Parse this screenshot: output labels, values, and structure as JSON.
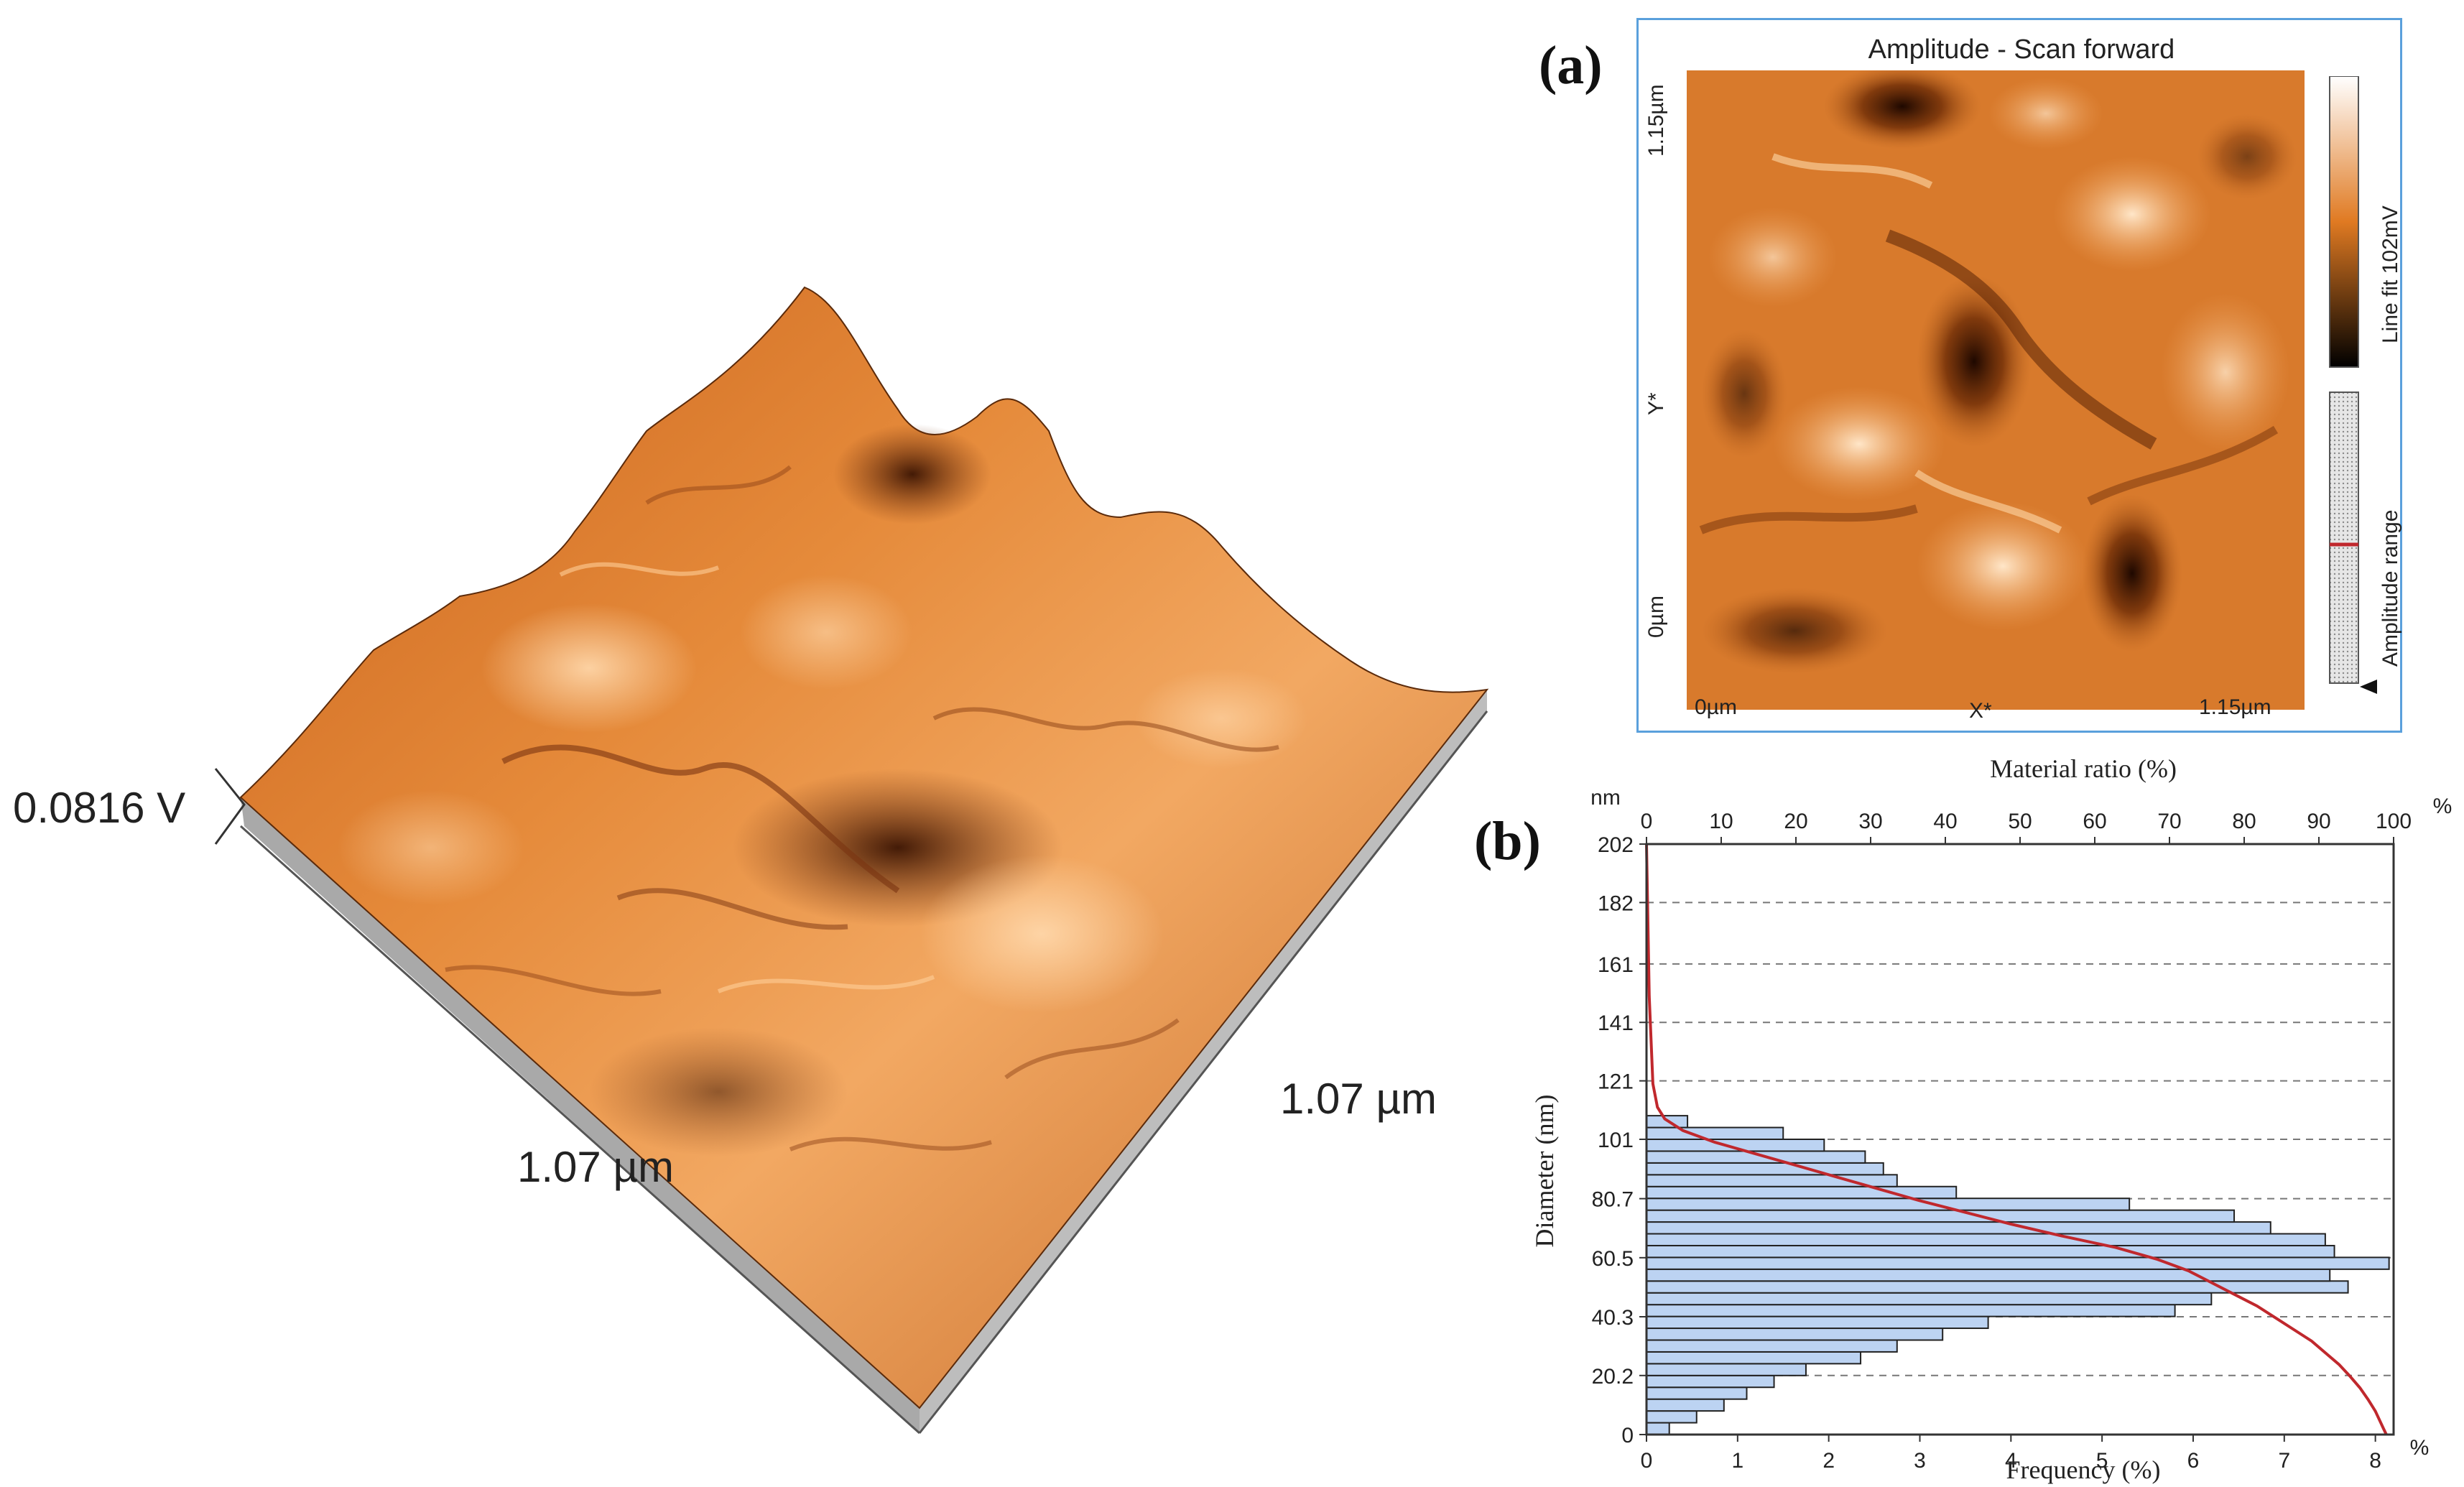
{
  "figure": {
    "panel_a_label": "(a)",
    "panel_b_label": "(b)"
  },
  "surface3d": {
    "z_label": "0.0816 V",
    "x_label": "1.07 µm",
    "y_label": "1.07 µm",
    "colors": {
      "surface": "#d9782a",
      "light": "#f7c089",
      "dark": "#6b2c08",
      "side": "#b3b3b3"
    }
  },
  "afm_image": {
    "title": "Amplitude - Scan forward",
    "y_axis_label": "Y*",
    "x_axis_label": "X*",
    "x_min": "0µm",
    "x_max": "1.15µm",
    "y_min": "0µm",
    "y_max": "1.15µm",
    "colorbar_label": "Line fit 102mV",
    "range_label": "Amplitude range",
    "frame_color": "#5aa0dc"
  },
  "chart_data": {
    "type": "bar",
    "orientation": "horizontal",
    "xlabel": "Frequency (%)",
    "top_xlabel": "Material ratio (%)",
    "ylabel": "Diameter (nm)",
    "y_unit": "nm",
    "x_unit": "%",
    "top_x_unit": "%",
    "xlim": [
      0,
      8.2
    ],
    "ylim": [
      0,
      202
    ],
    "x_ticks": [
      "0",
      "1",
      "2",
      "3",
      "4",
      "5",
      "6",
      "7",
      "8"
    ],
    "top_ticks": [
      "0",
      "10",
      "20",
      "30",
      "40",
      "50",
      "60",
      "70",
      "80",
      "90",
      "100"
    ],
    "y_ticks": [
      {
        "value": 0,
        "label": "0"
      },
      {
        "value": 20.2,
        "label": "20.2"
      },
      {
        "value": 40.3,
        "label": "40.3"
      },
      {
        "value": 60.5,
        "label": "60.5"
      },
      {
        "value": 80.7,
        "label": "80.7"
      },
      {
        "value": 101,
        "label": "101"
      },
      {
        "value": 121,
        "label": "121"
      },
      {
        "value": 141,
        "label": "141"
      },
      {
        "value": 161,
        "label": "161"
      },
      {
        "value": 182,
        "label": "182"
      },
      {
        "value": 202,
        "label": "202"
      }
    ],
    "bin_width": 4.04,
    "bins_start": [
      0,
      4.04,
      8.08,
      12.12,
      16.16,
      20.2,
      24.24,
      28.28,
      32.32,
      36.36,
      40.4,
      44.44,
      48.48,
      52.52,
      56.56,
      60.6,
      64.64,
      68.68,
      72.72,
      76.76,
      80.8,
      84.84,
      88.88,
      92.92,
      96.96,
      101,
      105.04
    ],
    "values": [
      0.25,
      0.55,
      0.85,
      1.1,
      1.4,
      1.75,
      2.35,
      2.75,
      3.25,
      3.75,
      5.8,
      6.2,
      7.7,
      7.5,
      8.15,
      7.55,
      7.45,
      6.85,
      6.45,
      5.3,
      3.4,
      2.75,
      2.6,
      2.4,
      1.95,
      1.5,
      0.45
    ],
    "cumulative_curve": {
      "name": "Material ratio",
      "color": "#c0282d",
      "diameter": [
        202,
        150,
        120,
        112,
        108,
        104,
        100,
        96,
        92,
        88,
        84,
        80,
        76,
        72,
        68,
        64,
        60,
        56,
        52,
        48,
        44,
        40,
        36,
        32,
        28,
        24,
        20,
        16,
        12,
        8,
        4,
        2,
        0
      ],
      "frequency_axis": [
        0.0,
        0.03,
        0.07,
        0.12,
        0.2,
        0.4,
        0.75,
        1.2,
        1.65,
        2.1,
        2.55,
        3.0,
        3.5,
        4.0,
        4.55,
        5.15,
        5.6,
        5.95,
        6.2,
        6.45,
        6.7,
        6.9,
        7.1,
        7.3,
        7.45,
        7.6,
        7.72,
        7.83,
        7.92,
        8.0,
        8.06,
        8.09,
        8.12
      ]
    },
    "bar_color": "#bcd3f2",
    "grid": "dashed horizontal"
  }
}
